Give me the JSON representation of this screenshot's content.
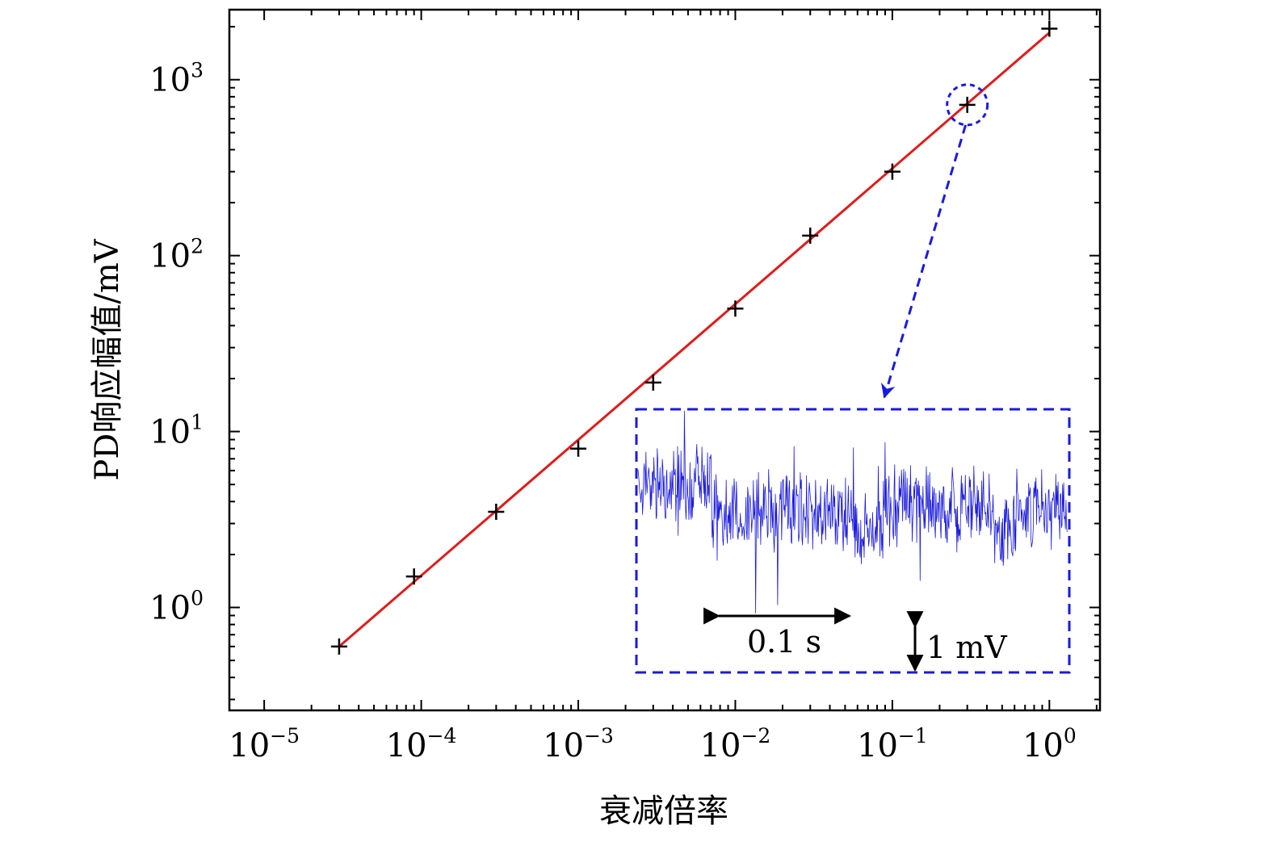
{
  "chart_data": {
    "type": "scatter",
    "xlabel": "衰减倍率",
    "ylabel": "PD响应幅值/mV",
    "xscale": "log",
    "yscale": "log",
    "xlim": [
      6e-06,
      2.1
    ],
    "ylim": [
      0.26,
      2500
    ],
    "grid": false,
    "x_ticks": [
      {
        "base": "10",
        "exp": "−5",
        "value": 1e-05
      },
      {
        "base": "10",
        "exp": "−4",
        "value": 0.0001
      },
      {
        "base": "10",
        "exp": "−3",
        "value": 0.001
      },
      {
        "base": "10",
        "exp": "−2",
        "value": 0.01
      },
      {
        "base": "10",
        "exp": "−1",
        "value": 0.1
      },
      {
        "base": "10",
        "exp": "0",
        "value": 1
      }
    ],
    "y_ticks": [
      {
        "base": "10",
        "exp": "0",
        "value": 1
      },
      {
        "base": "10",
        "exp": "1",
        "value": 10
      },
      {
        "base": "10",
        "exp": "2",
        "value": 100
      },
      {
        "base": "10",
        "exp": "3",
        "value": 1000
      }
    ],
    "series": [
      {
        "marker": "plus",
        "color": "#000000",
        "x": [
          3e-05,
          9e-05,
          0.0003,
          0.001,
          0.003,
          0.01,
          0.03,
          0.1,
          0.3,
          1
        ],
        "y": [
          0.6,
          1.5,
          3.5,
          8,
          19,
          50,
          130,
          300,
          720,
          1950
        ]
      },
      {
        "type": "line",
        "role": "fit",
        "color": "#e01b1b",
        "x": [
          3e-05,
          1
        ],
        "y": [
          0.6,
          1850
        ]
      }
    ],
    "highlight": {
      "x": 0.3,
      "y": 720,
      "color": "#1a1adf"
    },
    "inset": {
      "type": "line",
      "color": "#1a1adf",
      "border_color": "#1a1adf",
      "time_scale_label": "0.1 s",
      "voltage_scale_label": "1 mV"
    }
  }
}
